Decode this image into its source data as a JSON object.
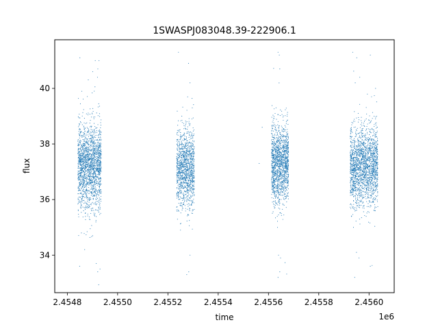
{
  "chart_data": {
    "type": "scatter",
    "title": "1SWASPJ083048.39-222906.1",
    "xlabel": "time",
    "ylabel": "flux",
    "x_offset_label": "1e6",
    "xlim": [
      2454750,
      2456100
    ],
    "ylim": [
      32.65,
      41.75
    ],
    "x_ticks": [
      2454800,
      2455000,
      2455200,
      2455400,
      2455600,
      2455800,
      2456000
    ],
    "x_tick_labels": [
      "2.4548",
      "2.4550",
      "2.4552",
      "2.4554",
      "2.4556",
      "2.4558",
      "2.4560"
    ],
    "y_ticks": [
      34,
      36,
      38,
      40
    ],
    "y_tick_labels": [
      "34",
      "36",
      "38",
      "40"
    ],
    "grid": false,
    "legend": "none",
    "marker_color": "#1f77b4",
    "series": [
      {
        "clusters": [
          {
            "x_start": 2454842,
            "x_end": 2454935,
            "center": 37.2,
            "spread": 0.75,
            "count": 1900
          },
          {
            "x_start": 2455235,
            "x_end": 2455305,
            "center": 37.1,
            "spread": 0.7,
            "count": 1300
          },
          {
            "x_start": 2455612,
            "x_end": 2455680,
            "center": 37.3,
            "spread": 0.7,
            "count": 1500
          },
          {
            "x_start": 2455925,
            "x_end": 2456035,
            "center": 37.2,
            "spread": 0.7,
            "count": 2000
          }
        ],
        "outliers": [
          [
            2454850,
            41.1
          ],
          [
            2454901,
            40.6
          ],
          [
            2454907,
            39.9
          ],
          [
            2454911,
            41.0
          ],
          [
            2454920,
            40.4
          ],
          [
            2454926,
            41.0
          ],
          [
            2454856,
            34.8
          ],
          [
            2454869,
            34.2
          ],
          [
            2454915,
            33.7
          ],
          [
            2454921,
            33.4
          ],
          [
            2454930,
            33.5
          ],
          [
            2454849,
            33.6
          ],
          [
            2455242,
            41.3
          ],
          [
            2455282,
            40.9
          ],
          [
            2455288,
            40.2
          ],
          [
            2455297,
            39.3
          ],
          [
            2455288,
            34.0
          ],
          [
            2455275,
            33.3
          ],
          [
            2455283,
            33.4
          ],
          [
            2455250,
            34.9
          ],
          [
            2455638,
            41.3
          ],
          [
            2455643,
            41.2
          ],
          [
            2455645,
            40.7
          ],
          [
            2455630,
            39.3
          ],
          [
            2455640,
            34.0
          ],
          [
            2455638,
            33.2
          ],
          [
            2455645,
            33.4
          ],
          [
            2455648,
            33.9
          ],
          [
            2455575,
            38.6
          ],
          [
            2455563,
            37.3
          ],
          [
            2455935,
            41.3
          ],
          [
            2455945,
            40.2
          ],
          [
            2455951,
            41.1
          ],
          [
            2455963,
            40.4
          ],
          [
            2456005,
            41.2
          ],
          [
            2456010,
            39.7
          ],
          [
            2456026,
            40.0
          ],
          [
            2456030,
            39.0
          ],
          [
            2455960,
            33.9
          ],
          [
            2456005,
            33.6
          ],
          [
            2455943,
            33.2
          ],
          [
            2455938,
            35.0
          ],
          [
            2455950,
            34.1
          ],
          [
            2456025,
            35.6
          ]
        ]
      }
    ]
  }
}
